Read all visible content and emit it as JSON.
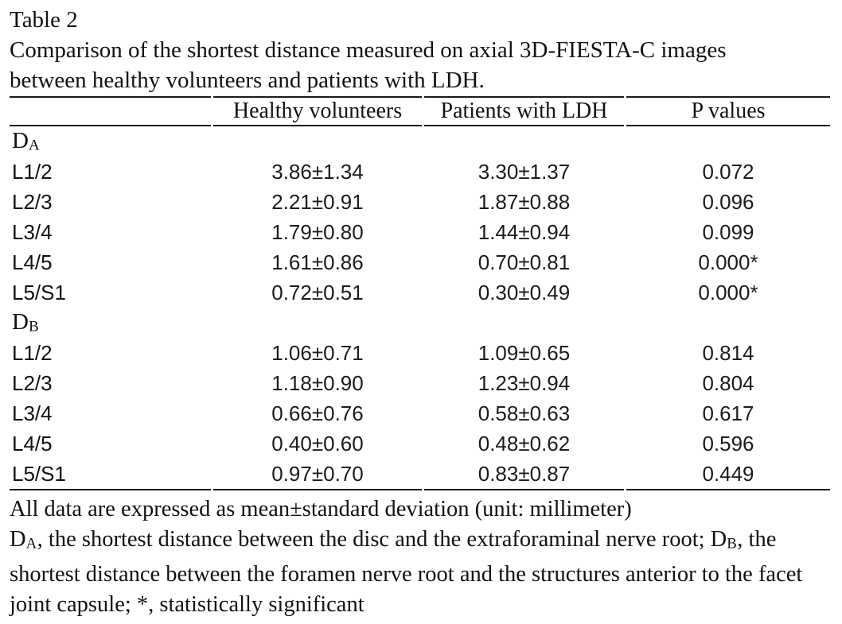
{
  "title": "Table 2",
  "caption_line1": "Comparison of the shortest distance measured on axial 3D-FIESTA-C images",
  "caption_line2": "between healthy volunteers and patients with LDH.",
  "columns": {
    "row_label": "",
    "healthy": "Healthy volunteers",
    "ldh": "Patients with LDH",
    "p": "P values"
  },
  "sections": [
    {
      "label_base": "D",
      "label_sub": "A",
      "rows": [
        {
          "level": "L1/2",
          "healthy": "3.86±1.34",
          "ldh": "3.30±1.37",
          "p": "0.072"
        },
        {
          "level": "L2/3",
          "healthy": "2.21±0.91",
          "ldh": "1.87±0.88",
          "p": "0.096"
        },
        {
          "level": "L3/4",
          "healthy": "1.79±0.80",
          "ldh": "1.44±0.94",
          "p": "0.099"
        },
        {
          "level": "L4/5",
          "healthy": "1.61±0.86",
          "ldh": "0.70±0.81",
          "p": "0.000*"
        },
        {
          "level": "L5/S1",
          "healthy": "0.72±0.51",
          "ldh": "0.30±0.49",
          "p": "0.000*"
        }
      ]
    },
    {
      "label_base": "D",
      "label_sub": "B",
      "rows": [
        {
          "level": "L1/2",
          "healthy": "1.06±0.71",
          "ldh": "1.09±0.65",
          "p": "0.814"
        },
        {
          "level": "L2/3",
          "healthy": "1.18±0.90",
          "ldh": "1.23±0.94",
          "p": "0.804"
        },
        {
          "level": "L3/4",
          "healthy": "0.66±0.76",
          "ldh": "0.58±0.63",
          "p": "0.617"
        },
        {
          "level": "L4/5",
          "healthy": "0.40±0.60",
          "ldh": "0.48±0.62",
          "p": "0.596"
        },
        {
          "level": "L5/S1",
          "healthy": "0.97±0.70",
          "ldh": "0.83±0.87",
          "p": "0.449"
        }
      ]
    }
  ],
  "footnotes": {
    "line1": "All data are expressed as mean±standard deviation (unit: millimeter)",
    "def_a_base": "D",
    "def_a_sub": "A",
    "def_a_text": ", the shortest distance between the disc and the extraforaminal nerve root; ",
    "def_b_base": "D",
    "def_b_sub": "B",
    "def_b_text": ", the shortest distance between the foramen nerve root and the structures anterior to the facet joint capsule; *, statistically significant"
  },
  "colors": {
    "background": "#ffffff",
    "text": "#121212",
    "rule": "#1a1a1a"
  }
}
